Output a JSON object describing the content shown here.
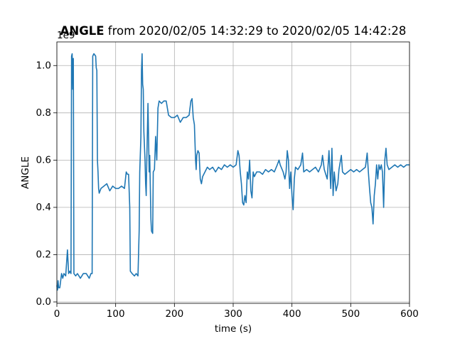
{
  "chart_data": {
    "type": "line",
    "title_bold": "ANGLE",
    "title": "from 2020/02/05 14:32:29 to 2020/02/05 14:42:28",
    "x_label": "time (s)",
    "y_label": "ANGLE",
    "y_offset_text": "1e9",
    "x": [
      0,
      1,
      2,
      3,
      5,
      8,
      10,
      12,
      15,
      18,
      20,
      22,
      24,
      25,
      26,
      27,
      28,
      29,
      32,
      35,
      40,
      45,
      50,
      55,
      58,
      60,
      61,
      63,
      66,
      67,
      68,
      69,
      70,
      71,
      72,
      75,
      80,
      85,
      90,
      95,
      100,
      105,
      110,
      115,
      118,
      120,
      122,
      124,
      125,
      128,
      132,
      135,
      138,
      140,
      141,
      143,
      144,
      145,
      146,
      147,
      148,
      150,
      151,
      152,
      153,
      155,
      156,
      157,
      158,
      160,
      161,
      163,
      164,
      166,
      168,
      170,
      172,
      174,
      178,
      182,
      186,
      190,
      195,
      200,
      205,
      210,
      215,
      220,
      225,
      228,
      230,
      232,
      234,
      236,
      237,
      238,
      240,
      242,
      244,
      246,
      248,
      252,
      256,
      260,
      265,
      270,
      275,
      280,
      285,
      290,
      295,
      300,
      305,
      308,
      310,
      312,
      314,
      316,
      318,
      320,
      322,
      324,
      326,
      328,
      330,
      332,
      334,
      336,
      340,
      345,
      350,
      355,
      360,
      365,
      370,
      375,
      378,
      380,
      385,
      388,
      390,
      392,
      394,
      396,
      398,
      400,
      402,
      404,
      406,
      410,
      415,
      418,
      420,
      425,
      430,
      435,
      440,
      445,
      450,
      452,
      455,
      460,
      463,
      466,
      468,
      470,
      472,
      475,
      478,
      480,
      484,
      486,
      490,
      495,
      500,
      505,
      510,
      515,
      520,
      525,
      528,
      530,
      532,
      534,
      536,
      538,
      540,
      542,
      544,
      546,
      548,
      550,
      552,
      554,
      556,
      558,
      560,
      562,
      565,
      570,
      575,
      580,
      585,
      590,
      595,
      600
    ],
    "series": [
      {
        "name": "ANGLE",
        "color": "#1f77b4",
        "values": [
          0.07,
          0.05,
          0.09,
          0.06,
          0.06,
          0.12,
          0.1,
          0.12,
          0.11,
          0.22,
          0.12,
          0.13,
          0.12,
          1.04,
          1.05,
          0.9,
          1.03,
          0.12,
          0.11,
          0.12,
          0.1,
          0.12,
          0.12,
          0.1,
          0.12,
          0.12,
          1.04,
          1.05,
          1.04,
          0.99,
          0.98,
          0.6,
          0.55,
          0.48,
          0.46,
          0.48,
          0.49,
          0.5,
          0.47,
          0.49,
          0.48,
          0.48,
          0.49,
          0.48,
          0.55,
          0.54,
          0.54,
          0.4,
          0.13,
          0.12,
          0.11,
          0.12,
          0.11,
          0.3,
          0.55,
          0.7,
          0.98,
          1.05,
          0.92,
          0.9,
          0.72,
          0.6,
          0.5,
          0.45,
          0.6,
          0.84,
          0.7,
          0.55,
          0.62,
          0.35,
          0.3,
          0.29,
          0.55,
          0.56,
          0.7,
          0.6,
          0.82,
          0.85,
          0.84,
          0.85,
          0.85,
          0.79,
          0.78,
          0.78,
          0.79,
          0.76,
          0.78,
          0.78,
          0.79,
          0.85,
          0.86,
          0.78,
          0.75,
          0.6,
          0.56,
          0.62,
          0.64,
          0.63,
          0.52,
          0.5,
          0.53,
          0.55,
          0.57,
          0.56,
          0.57,
          0.55,
          0.57,
          0.56,
          0.58,
          0.57,
          0.58,
          0.57,
          0.58,
          0.64,
          0.62,
          0.55,
          0.5,
          0.42,
          0.41,
          0.45,
          0.42,
          0.55,
          0.52,
          0.6,
          0.47,
          0.44,
          0.55,
          0.53,
          0.55,
          0.55,
          0.54,
          0.56,
          0.55,
          0.56,
          0.55,
          0.58,
          0.6,
          0.58,
          0.55,
          0.52,
          0.55,
          0.64,
          0.6,
          0.48,
          0.55,
          0.45,
          0.39,
          0.52,
          0.57,
          0.56,
          0.58,
          0.63,
          0.55,
          0.56,
          0.55,
          0.56,
          0.57,
          0.55,
          0.58,
          0.62,
          0.56,
          0.52,
          0.64,
          0.48,
          0.65,
          0.45,
          0.55,
          0.47,
          0.5,
          0.56,
          0.62,
          0.55,
          0.54,
          0.55,
          0.56,
          0.55,
          0.56,
          0.55,
          0.56,
          0.57,
          0.63,
          0.55,
          0.48,
          0.42,
          0.4,
          0.33,
          0.45,
          0.5,
          0.58,
          0.52,
          0.58,
          0.56,
          0.58,
          0.55,
          0.4,
          0.6,
          0.65,
          0.58,
          0.56,
          0.57,
          0.58,
          0.57,
          0.58,
          0.57,
          0.58,
          0.58
        ]
      }
    ],
    "xlim": [
      0,
      600
    ],
    "xticks": [
      0,
      100,
      200,
      300,
      400,
      500,
      600
    ],
    "ylim": [
      -0.006,
      1.1
    ],
    "yticks": [
      {
        "value": 0,
        "label": "0.0"
      },
      {
        "value": 0.2,
        "label": "0.2"
      },
      {
        "value": 0.4,
        "label": "0.4"
      },
      {
        "value": 0.6,
        "label": "0.6"
      },
      {
        "value": 0.8,
        "label": "0.8"
      },
      {
        "value": 1.0,
        "label": "1.0"
      }
    ],
    "grid": true
  }
}
